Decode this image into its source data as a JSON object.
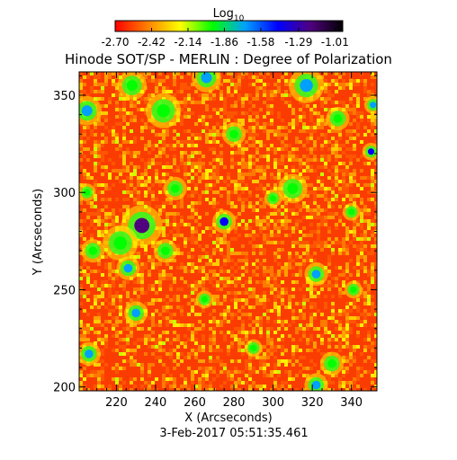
{
  "chart_data": {
    "type": "heatmap",
    "title": "Hinode SOT/SP - MERLIN : Degree of Polarization",
    "timestamp": "3-Feb-2017 05:51:35.461",
    "xlabel": "X (Arcseconds)",
    "ylabel": "Y (Arcseconds)",
    "xlim": [
      201,
      353
    ],
    "ylim": [
      198,
      362
    ],
    "x_ticks": [
      220,
      240,
      260,
      280,
      300,
      320,
      340
    ],
    "y_ticks": [
      200,
      250,
      300,
      350
    ],
    "colorbar": {
      "label_main": "Log",
      "label_sub": "10",
      "range": [
        -2.7,
        -0.95
      ],
      "ticks": [
        "-2.70",
        "-2.42",
        "-2.14",
        "-1.86",
        "-1.58",
        "-1.29",
        "-1.01"
      ],
      "tick_values": [
        -2.7,
        -2.42,
        -2.14,
        -1.86,
        -1.58,
        -1.29,
        -1.01
      ],
      "colormap": [
        "#ff0000",
        "#ff8000",
        "#ffff00",
        "#00ff00",
        "#00a0ff",
        "#0000ff",
        "#50007f",
        "#000000"
      ]
    },
    "patches": [
      {
        "x": 233,
        "y": 283,
        "r": 7,
        "v": -1.2
      },
      {
        "x": 275,
        "y": 285,
        "r": 4,
        "v": -1.4
      },
      {
        "x": 205,
        "y": 342,
        "r": 5,
        "v": -1.7
      },
      {
        "x": 228,
        "y": 355,
        "r": 5,
        "v": -1.9
      },
      {
        "x": 244,
        "y": 342,
        "r": 6,
        "v": -1.9
      },
      {
        "x": 266,
        "y": 359,
        "r": 5,
        "v": -1.8
      },
      {
        "x": 317,
        "y": 355,
        "r": 6,
        "v": -1.7
      },
      {
        "x": 333,
        "y": 338,
        "r": 4,
        "v": -2.0
      },
      {
        "x": 351,
        "y": 345,
        "r": 3,
        "v": -1.6
      },
      {
        "x": 350,
        "y": 321,
        "r": 3,
        "v": -1.5
      },
      {
        "x": 310,
        "y": 302,
        "r": 5,
        "v": -2.0
      },
      {
        "x": 300,
        "y": 297,
        "r": 3,
        "v": -1.9
      },
      {
        "x": 250,
        "y": 302,
        "r": 4,
        "v": -2.0
      },
      {
        "x": 208,
        "y": 270,
        "r": 4,
        "v": -2.0
      },
      {
        "x": 222,
        "y": 274,
        "r": 6,
        "v": -1.9
      },
      {
        "x": 245,
        "y": 270,
        "r": 4,
        "v": -2.0
      },
      {
        "x": 226,
        "y": 261,
        "r": 4,
        "v": -1.8
      },
      {
        "x": 322,
        "y": 258,
        "r": 4,
        "v": -1.6
      },
      {
        "x": 341,
        "y": 250,
        "r": 3,
        "v": -2.0
      },
      {
        "x": 230,
        "y": 238,
        "r": 4,
        "v": -1.8
      },
      {
        "x": 206,
        "y": 217,
        "r": 4,
        "v": -1.8
      },
      {
        "x": 290,
        "y": 220,
        "r": 3,
        "v": -2.0
      },
      {
        "x": 330,
        "y": 212,
        "r": 4,
        "v": -2.0
      },
      {
        "x": 322,
        "y": 201,
        "r": 4,
        "v": -1.7
      },
      {
        "x": 280,
        "y": 330,
        "r": 4,
        "v": -2.0
      },
      {
        "x": 205,
        "y": 300,
        "r": 3,
        "v": -2.0
      },
      {
        "x": 340,
        "y": 290,
        "r": 3,
        "v": -2.0
      },
      {
        "x": 265,
        "y": 245,
        "r": 3,
        "v": -2.0
      }
    ]
  }
}
